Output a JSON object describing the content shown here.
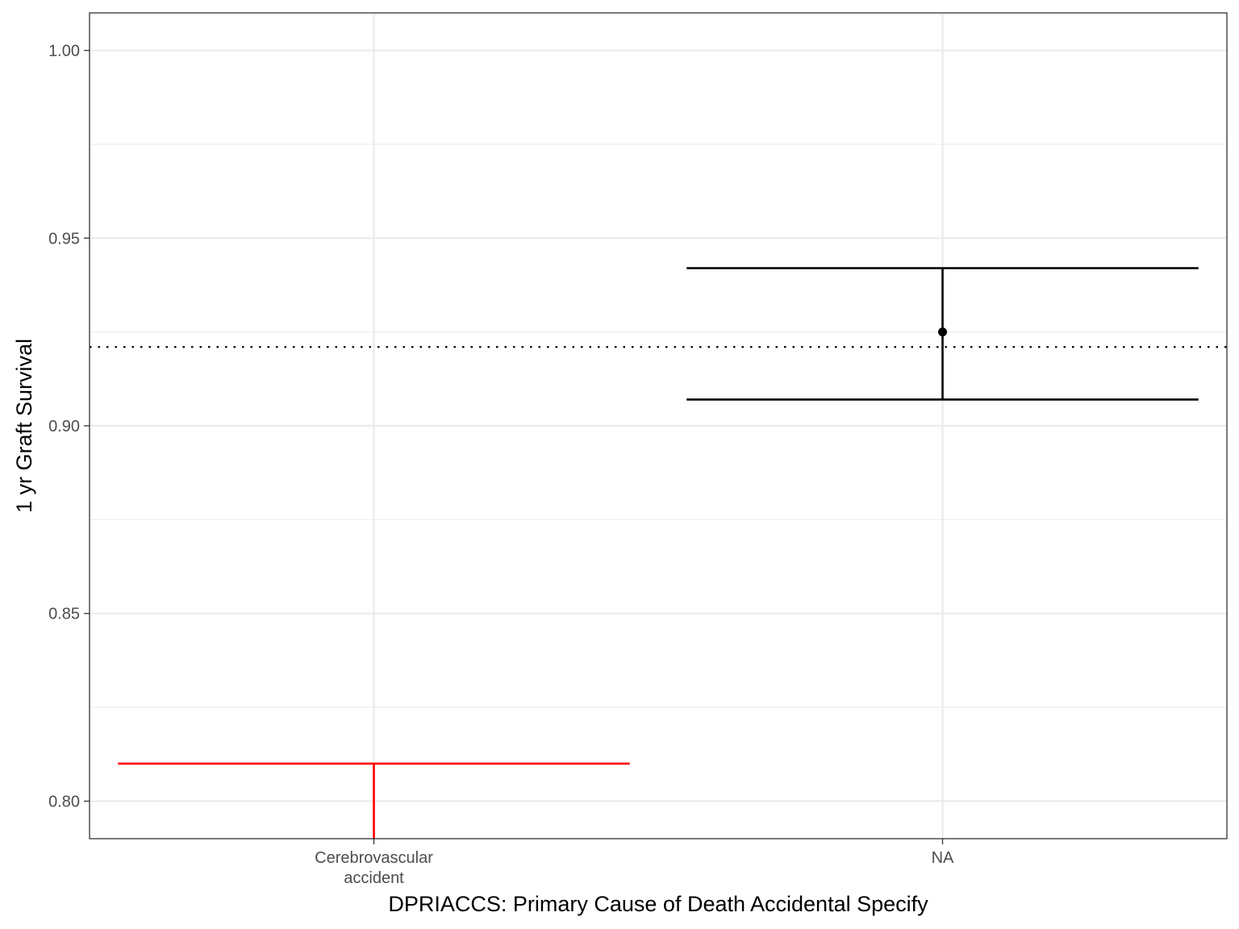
{
  "chart_data": {
    "type": "errorbar",
    "xlabel": "DPRIACCS: Primary Cause of Death Accidental Specify",
    "ylabel": "1 yr Graft Survival",
    "categories": [
      [
        "Cerebrovascular",
        "accident"
      ],
      [
        "NA"
      ]
    ],
    "ylim": [
      0.79,
      1.01
    ],
    "yticks": [
      {
        "value": 0.8,
        "label": "0.80"
      },
      {
        "value": 0.85,
        "label": "0.85"
      },
      {
        "value": 0.9,
        "label": "0.90"
      },
      {
        "value": 0.95,
        "label": "0.95"
      },
      {
        "value": 1.0,
        "label": "1.00"
      }
    ],
    "reference_line": 0.921,
    "points": [
      {
        "category": 0,
        "estimate": null,
        "lower": null,
        "upper": 0.81,
        "color": "#ff0000"
      },
      {
        "category": 1,
        "estimate": 0.925,
        "lower": 0.907,
        "upper": 0.942,
        "color": "#000000"
      }
    ],
    "grid": true
  }
}
